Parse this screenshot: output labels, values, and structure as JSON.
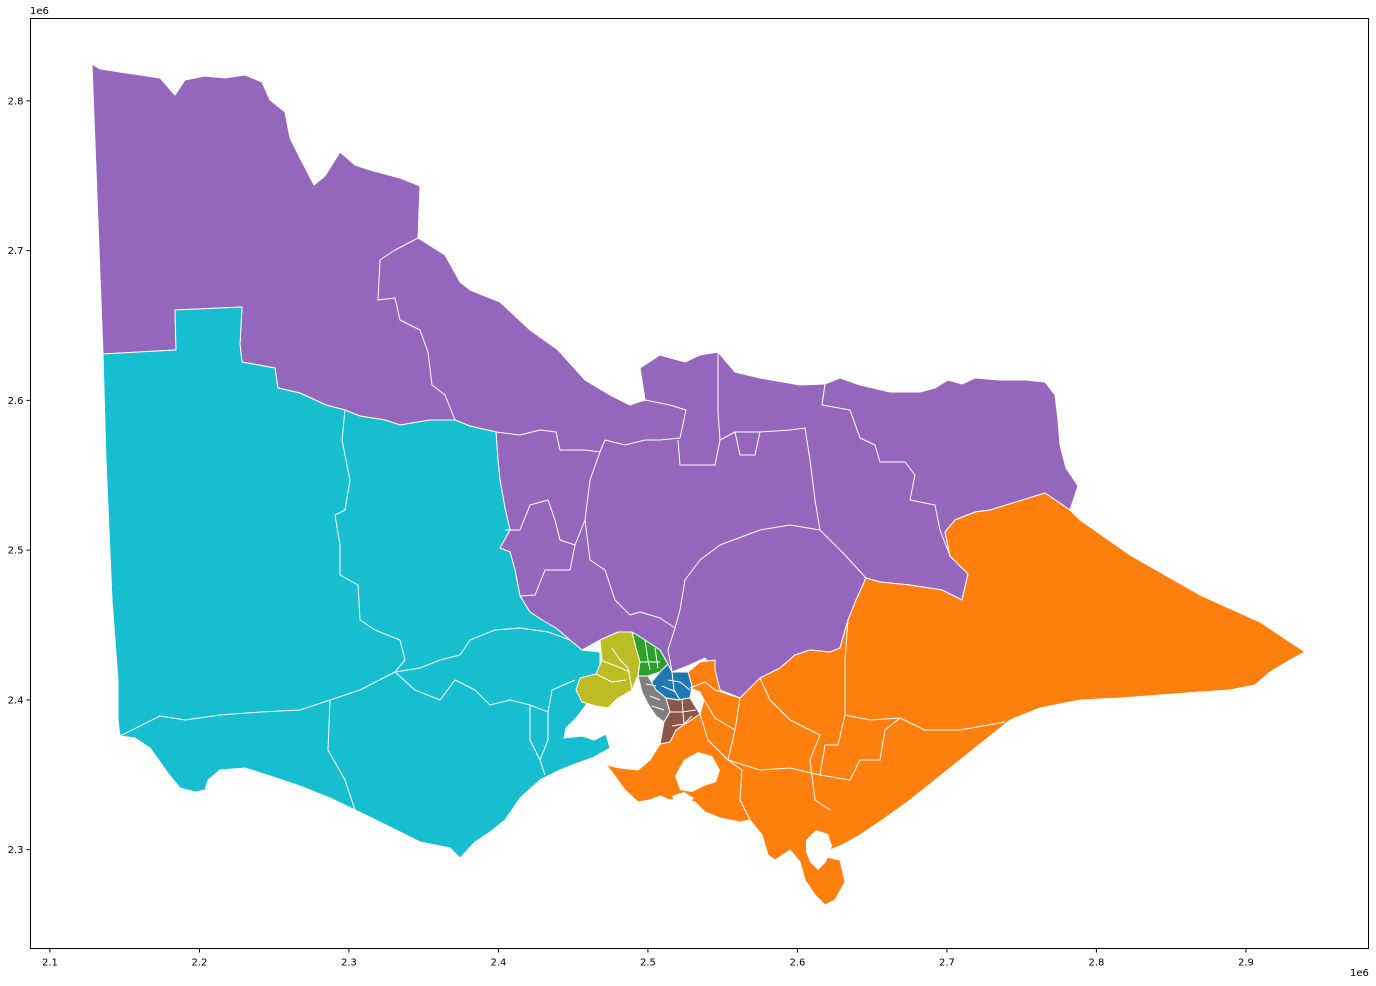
{
  "chart_data": {
    "type": "choropleth map",
    "title": "",
    "xlabel": "",
    "ylabel": "",
    "x_offset_label": "1e6",
    "y_offset_label": "1e6",
    "xlim": [
      2.087,
      2.982
    ],
    "ylim": [
      2.234,
      2.855
    ],
    "x_ticks": [
      {
        "value": 2.1,
        "label": "2.1"
      },
      {
        "value": 2.2,
        "label": "2.2"
      },
      {
        "value": 2.3,
        "label": "2.3"
      },
      {
        "value": 2.4,
        "label": "2.4"
      },
      {
        "value": 2.5,
        "label": "2.5"
      },
      {
        "value": 2.6,
        "label": "2.6"
      },
      {
        "value": 2.7,
        "label": "2.7"
      },
      {
        "value": 2.8,
        "label": "2.8"
      },
      {
        "value": 2.9,
        "label": "2.9"
      }
    ],
    "y_ticks": [
      {
        "value": 2.3,
        "label": "2.3"
      },
      {
        "value": 2.4,
        "label": "2.4"
      },
      {
        "value": 2.5,
        "label": "2.5"
      },
      {
        "value": 2.6,
        "label": "2.6"
      },
      {
        "value": 2.7,
        "label": "2.7"
      },
      {
        "value": 2.8,
        "label": "2.8"
      }
    ],
    "grid": false,
    "legend": "none",
    "boundary_color": "#ffffff",
    "region_colors": {
      "purple": "#9467bd",
      "cyan": "#17becf",
      "orange": "#ff7f0e",
      "olive": "#bcbd22",
      "green": "#2ca02c",
      "blue": "#1f77b4",
      "brown": "#8c564b",
      "gray": "#7f7f7f"
    }
  }
}
